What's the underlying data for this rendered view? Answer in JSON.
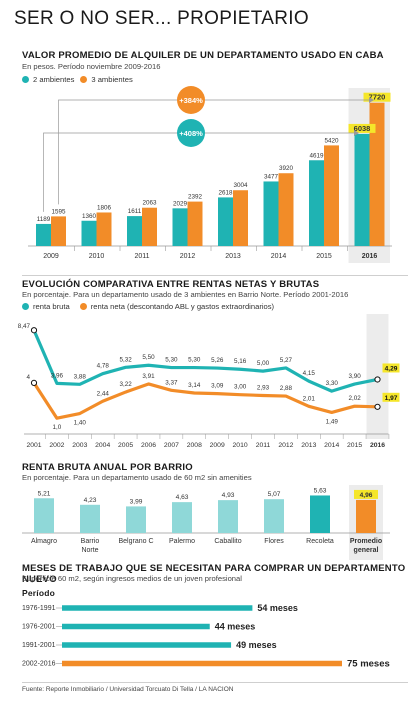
{
  "title": "SER O NO SER... PROPIETARIO",
  "colors": {
    "teal": "#1fb3b3",
    "orange": "#f28c28",
    "yellow": "#f5e62a",
    "gray_text": "#444444"
  },
  "chart_data": [
    {
      "type": "bar",
      "title": "VALOR PROMEDIO DE ALQUILER DE UN DEPARTAMENTO USADO EN CABA",
      "subtitle": "En pesos. Período noviembre 2009-2016",
      "categories": [
        "2009",
        "2010",
        "2011",
        "2012",
        "2013",
        "2014",
        "2015",
        "2016"
      ],
      "series": [
        {
          "name": "2 ambientes",
          "color": "#1fb3b3",
          "values": [
            1189,
            1360,
            1611,
            2029,
            2618,
            3477,
            4619,
            6038
          ]
        },
        {
          "name": "3 ambientes",
          "color": "#f28c28",
          "values": [
            1595,
            1806,
            2063,
            2392,
            3004,
            3920,
            5420,
            7720
          ]
        }
      ],
      "annotations": [
        "+384%",
        "+408%"
      ],
      "ylim": [
        0,
        8000
      ]
    },
    {
      "type": "line",
      "title": "EVOLUCIÓN COMPARATIVA ENTRE RENTAS NETAS Y BRUTAS",
      "subtitle": "En porcentaje. Para un departamento usado de 3 ambientes en Barrio Norte. Período 2001-2016",
      "x": [
        "2001",
        "2002",
        "2003",
        "2004",
        "2005",
        "2006",
        "2007",
        "2008",
        "2009",
        "2010",
        "2011",
        "2012",
        "2013",
        "2014",
        "2015",
        "2016"
      ],
      "series": [
        {
          "name": "renta bruta",
          "color": "#1fb3b3",
          "values": [
            8.47,
            3.96,
            3.88,
            4.78,
            5.32,
            5.5,
            5.3,
            5.3,
            5.26,
            5.16,
            5.0,
            5.27,
            4.15,
            3.3,
            3.9,
            4.29
          ],
          "labels": [
            "8,47",
            "3,96",
            "3,88",
            "4,78",
            "5,32",
            "5,50",
            "5,30",
            "5,30",
            "5,26",
            "5,16",
            "5,00",
            "5,27",
            "4,15",
            "3,30",
            "3,90",
            "4,29"
          ]
        },
        {
          "name": "renta neta (descontando ABL y gastos extraordinarios)",
          "color": "#f28c28",
          "values": [
            4,
            1.0,
            1.4,
            2.44,
            3.22,
            3.91,
            3.37,
            3.14,
            3.09,
            3.0,
            2.93,
            2.88,
            2.01,
            1.49,
            2.02,
            1.97
          ],
          "labels": [
            "4",
            "1,0",
            "1,40",
            "2,44",
            "3,22",
            "3,91",
            "3,37",
            "3,14",
            "3,09",
            "3,00",
            "2,93",
            "2,88",
            "2,01",
            "1,49",
            "2,02",
            "1,97"
          ]
        }
      ],
      "ylim": [
        0,
        9
      ]
    },
    {
      "type": "bar",
      "title": "RENTA BRUTA ANUAL POR BARRIO",
      "subtitle": "En porcentaje. Para un departamento usado de 60 m2 sin amenities",
      "categories": [
        "Almagro",
        "Barrio Norte",
        "Belgrano C",
        "Palermo",
        "Caballito",
        "Flores",
        "Recoleta",
        "Promedio general"
      ],
      "values": [
        5.21,
        4.23,
        3.99,
        4.63,
        4.93,
        5.07,
        5.63,
        4.96
      ],
      "value_labels": [
        "5,21",
        "4,23",
        "3,99",
        "4,63",
        "4,93",
        "5,07",
        "5,63",
        "4,96"
      ],
      "ylim": [
        0,
        6
      ]
    },
    {
      "type": "bar",
      "orientation": "horizontal",
      "title": "MESES DE TRABAJO QUE SE NECESITAN PARA COMPRAR UN DEPARTAMENTO NUEVO",
      "subtitle": "Superficie 60 m2, según ingresos medios de un joven profesional",
      "category_header": "Período",
      "categories": [
        "1976-1991",
        "1976-2001",
        "1991-2001",
        "2002-2016"
      ],
      "values": [
        54,
        44,
        49,
        75
      ],
      "value_labels": [
        "54 meses",
        "44 meses",
        "49 meses",
        "75 meses"
      ],
      "xlim": [
        0,
        75
      ]
    }
  ],
  "source": "Fuente: Reporte Inmobiliario / Universidad Torcuato Di Tella / LA NACION"
}
